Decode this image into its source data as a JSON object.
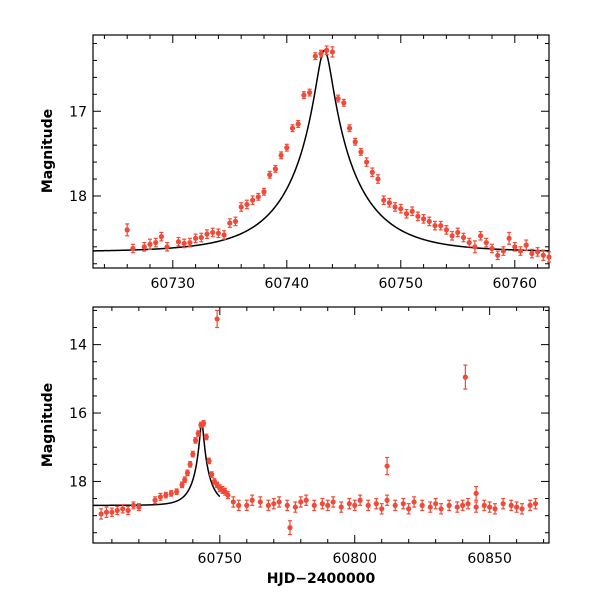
{
  "chart_data": [
    {
      "type": "scatter",
      "ylabel": "Magnitude",
      "xlim": [
        60723,
        60763
      ],
      "ylim": [
        18.85,
        16.1
      ],
      "y_inverted": true,
      "xticks": [
        60730,
        60740,
        60750,
        60760
      ],
      "yticks": [
        17,
        18
      ],
      "colors": {
        "points": "#f04a38",
        "model": "#000000"
      },
      "model": {
        "peak_x": 60743.3,
        "peak_y": 16.28,
        "baseline_y": 18.66
      },
      "series": [
        {
          "type": "errorbar",
          "x": [
            60726.0,
            60726.5,
            60727.5,
            60728.0,
            60728.5,
            60729.0,
            60729.5,
            60730.5,
            60731.0,
            60731.5,
            60732.0,
            60732.5,
            60733.0,
            60733.5,
            60734.0,
            60734.5,
            60735.0,
            60735.5,
            60736.0,
            60736.5,
            60737.0,
            60737.5,
            60738.0,
            60738.5,
            60739.0,
            60739.5,
            60740.0,
            60740.5,
            60741.0,
            60741.5,
            60742.0,
            60742.5,
            60743.0,
            60743.5,
            60744.0,
            60744.5,
            60745.0,
            60745.5,
            60746.0,
            60746.5,
            60747.0,
            60747.5,
            60748.0,
            60748.5,
            60749.0,
            60749.5,
            60750.0,
            60750.5,
            60751.0,
            60751.5,
            60752.0,
            60752.5,
            60753.0,
            60753.5,
            60754.0,
            60754.5,
            60755.0,
            60755.5,
            60756.0,
            60756.5,
            60757.0,
            60757.5,
            60758.0,
            60758.5,
            60759.0,
            60759.5,
            60760.0,
            60760.5,
            60761.0,
            60761.5,
            60762.0,
            60762.5,
            60763.0
          ],
          "y": [
            18.4,
            18.62,
            18.6,
            18.57,
            18.55,
            18.48,
            18.6,
            18.54,
            18.56,
            18.55,
            18.5,
            18.49,
            18.45,
            18.43,
            18.44,
            18.46,
            18.32,
            18.3,
            18.13,
            18.1,
            18.05,
            18.01,
            17.95,
            17.75,
            17.68,
            17.52,
            17.43,
            17.2,
            17.15,
            16.81,
            16.78,
            16.35,
            16.32,
            16.28,
            16.3,
            16.85,
            16.9,
            17.2,
            17.36,
            17.48,
            17.6,
            17.72,
            17.8,
            18.05,
            18.08,
            18.13,
            18.15,
            18.21,
            18.18,
            18.24,
            18.27,
            18.3,
            18.35,
            18.35,
            18.4,
            18.47,
            18.43,
            18.49,
            18.55,
            18.6,
            18.47,
            18.55,
            18.62,
            18.7,
            18.65,
            18.5,
            18.6,
            18.65,
            18.58,
            18.68,
            18.66,
            18.7,
            18.72
          ],
          "yerr": [
            0.07,
            0.05,
            0.05,
            0.06,
            0.05,
            0.05,
            0.05,
            0.05,
            0.05,
            0.05,
            0.05,
            0.05,
            0.05,
            0.05,
            0.05,
            0.05,
            0.05,
            0.05,
            0.05,
            0.05,
            0.05,
            0.04,
            0.04,
            0.04,
            0.04,
            0.04,
            0.04,
            0.04,
            0.04,
            0.04,
            0.04,
            0.04,
            0.04,
            0.05,
            0.06,
            0.04,
            0.04,
            0.04,
            0.04,
            0.04,
            0.05,
            0.05,
            0.05,
            0.05,
            0.05,
            0.05,
            0.05,
            0.05,
            0.05,
            0.05,
            0.05,
            0.05,
            0.05,
            0.05,
            0.05,
            0.05,
            0.05,
            0.05,
            0.05,
            0.07,
            0.05,
            0.05,
            0.05,
            0.05,
            0.05,
            0.07,
            0.05,
            0.05,
            0.06,
            0.05,
            0.05,
            0.06,
            0.06
          ]
        }
      ]
    },
    {
      "type": "scatter",
      "xlabel": "HJD−2400000",
      "ylabel": "Magnitude",
      "xlim": [
        60703,
        60872
      ],
      "ylim": [
        19.8,
        12.9
      ],
      "y_inverted": true,
      "xticks": [
        60750,
        60800,
        60850
      ],
      "yticks": [
        14,
        16,
        18
      ],
      "colors": {
        "points": "#f04a38",
        "model": "#000000"
      },
      "model": {
        "peak_x": 60743.3,
        "peak_y": 16.28,
        "baseline_y": 18.7,
        "x_end": 60750
      },
      "series": [
        {
          "type": "errorbar",
          "x": [
            60706,
            60708,
            60710,
            60712,
            60714,
            60716,
            60718,
            60720,
            60726,
            60728,
            60730,
            60732,
            60734,
            60736,
            60737,
            60738,
            60739,
            60740,
            60741,
            60742,
            60743,
            60744,
            60745,
            60746,
            60747,
            60748,
            60749,
            60750,
            60751,
            60752,
            60753,
            60755,
            60757,
            60760,
            60762,
            60765,
            60768,
            60770,
            60772,
            60775,
            60778,
            60780,
            60782,
            60785,
            60788,
            60790,
            60792,
            60795,
            60798,
            60800,
            60802,
            60805,
            60808,
            60810,
            60812,
            60815,
            60818,
            60820,
            60822,
            60825,
            60828,
            60830,
            60832,
            60835,
            60838,
            60840,
            60842,
            60845,
            60848,
            60850,
            60852,
            60855,
            60858,
            60860,
            60862,
            60865,
            60867,
            60749,
            60841,
            60812,
            60845,
            60776
          ],
          "y": [
            18.95,
            18.9,
            18.9,
            18.85,
            18.8,
            18.85,
            18.7,
            18.75,
            18.55,
            18.45,
            18.4,
            18.35,
            18.3,
            18.1,
            17.95,
            17.75,
            17.5,
            17.2,
            16.8,
            16.6,
            16.35,
            16.3,
            16.7,
            17.4,
            17.8,
            18.0,
            18.1,
            18.2,
            18.25,
            18.3,
            18.4,
            18.6,
            18.7,
            18.7,
            18.55,
            18.6,
            18.7,
            18.65,
            18.6,
            18.7,
            18.75,
            18.6,
            18.55,
            18.7,
            18.65,
            18.7,
            18.6,
            18.75,
            18.65,
            18.7,
            18.55,
            18.7,
            18.65,
            18.8,
            18.55,
            18.7,
            18.65,
            18.8,
            18.6,
            18.7,
            18.75,
            18.65,
            18.8,
            18.7,
            18.75,
            18.7,
            18.65,
            18.75,
            18.7,
            18.75,
            18.8,
            18.65,
            18.7,
            18.75,
            18.8,
            18.7,
            18.65,
            13.25,
            14.95,
            17.55,
            18.35,
            19.35
          ],
          "yerr": [
            0.15,
            0.15,
            0.12,
            0.12,
            0.12,
            0.12,
            0.1,
            0.1,
            0.1,
            0.1,
            0.08,
            0.08,
            0.08,
            0.08,
            0.08,
            0.08,
            0.08,
            0.08,
            0.08,
            0.08,
            0.08,
            0.08,
            0.08,
            0.08,
            0.08,
            0.08,
            0.08,
            0.1,
            0.1,
            0.1,
            0.1,
            0.15,
            0.15,
            0.15,
            0.15,
            0.15,
            0.15,
            0.15,
            0.15,
            0.15,
            0.15,
            0.15,
            0.15,
            0.15,
            0.15,
            0.15,
            0.15,
            0.15,
            0.15,
            0.15,
            0.15,
            0.15,
            0.15,
            0.15,
            0.15,
            0.15,
            0.15,
            0.15,
            0.15,
            0.15,
            0.15,
            0.15,
            0.15,
            0.15,
            0.15,
            0.15,
            0.15,
            0.15,
            0.15,
            0.15,
            0.15,
            0.15,
            0.15,
            0.15,
            0.15,
            0.15,
            0.15,
            0.25,
            0.35,
            0.25,
            0.2,
            0.2
          ]
        }
      ]
    }
  ]
}
